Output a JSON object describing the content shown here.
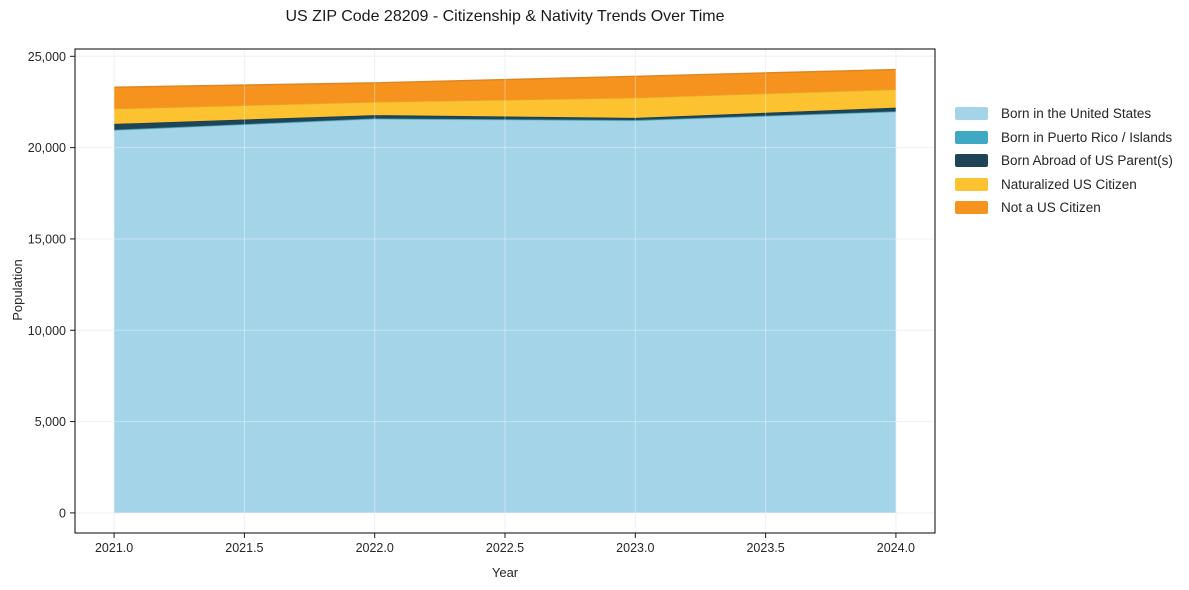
{
  "chart_data": {
    "type": "area",
    "stacked": true,
    "title": "US ZIP Code 28209 - Citizenship & Nativity Trends Over Time",
    "xlabel": "Year",
    "ylabel": "Population",
    "x": [
      2021,
      2022,
      2023,
      2024
    ],
    "series": [
      {
        "name": "Born in the United States",
        "color": "#a3d4e8",
        "values": [
          20950,
          21570,
          21480,
          21960
        ]
      },
      {
        "name": "Born in Puerto Rico / Islands",
        "color": "#3fa9c5",
        "values": [
          30,
          30,
          30,
          30
        ]
      },
      {
        "name": "Born Abroad of US Parent(s)",
        "color": "#1e4557",
        "values": [
          320,
          180,
          120,
          200
        ]
      },
      {
        "name": "Naturalized US Citizen",
        "color": "#fcc22f",
        "values": [
          830,
          720,
          1100,
          1000
        ]
      },
      {
        "name": "Not a US Citizen",
        "color": "#f6921e",
        "values": [
          1180,
          1050,
          1180,
          1090
        ]
      }
    ],
    "xlim": [
      2020.85,
      2024.15
    ],
    "ylim": [
      -1100,
      25400
    ],
    "xticks": {
      "values": [
        2021,
        2021.5,
        2022,
        2022.5,
        2023,
        2023.5,
        2024
      ],
      "labels": [
        "2021.0",
        "2021.5",
        "2022.0",
        "2022.5",
        "2023.0",
        "2023.5",
        "2024.0"
      ]
    },
    "yticks": {
      "values": [
        0,
        5000,
        10000,
        15000,
        20000,
        25000
      ],
      "labels": [
        "0",
        "5,000",
        "10,000",
        "15,000",
        "20,000",
        "25,000"
      ]
    },
    "grid": true,
    "legend_position": "right"
  }
}
